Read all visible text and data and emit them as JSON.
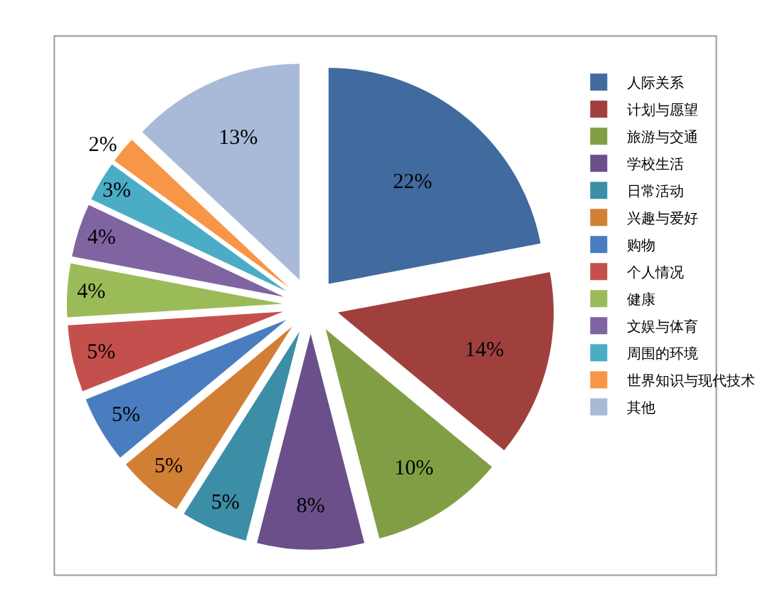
{
  "chart_data": {
    "type": "pie",
    "categories": [
      "人际关系",
      "计划与愿望",
      "旅游与交通",
      "学校生活",
      "日常活动",
      "兴趣与爱好",
      "购物",
      "个人情况",
      "健康",
      "文娱与体育",
      "周围的环境",
      "世界知识与现代技术",
      "其他"
    ],
    "values": [
      22,
      14,
      10,
      8,
      5,
      5,
      5,
      5,
      4,
      4,
      3,
      2,
      13
    ],
    "colors": [
      "#416A9E",
      "#A0403D",
      "#819E45",
      "#6A4F8A",
      "#3C8EA6",
      "#D27F36",
      "#4A7DBF",
      "#C4504D",
      "#9BBB59",
      "#8064A2",
      "#4BACC6",
      "#F79646",
      "#A9B9D8"
    ],
    "value_labels": [
      "22%",
      "14%",
      "10%",
      "8%",
      "5%",
      "5%",
      "5%",
      "5%",
      "4%",
      "4%",
      "3%",
      "2%",
      "13%"
    ],
    "legend": "right"
  }
}
